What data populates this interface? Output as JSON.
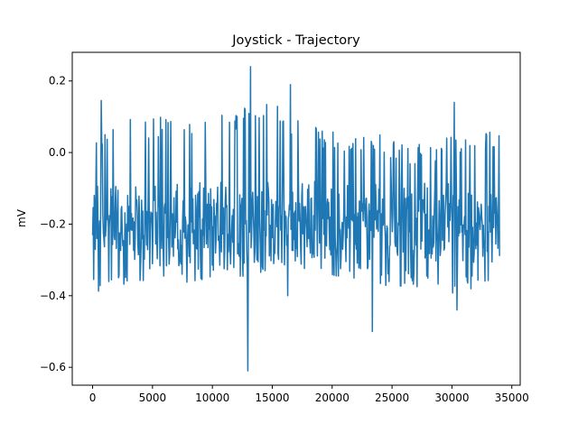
{
  "chart_data": {
    "type": "line",
    "title": "Joystick - Trajectory",
    "xlabel": "",
    "ylabel": "mV",
    "xlim": [
      -1700,
      35700
    ],
    "ylim": [
      -0.65,
      0.28
    ],
    "x_ticks": [
      0,
      5000,
      10000,
      15000,
      20000,
      25000,
      30000,
      35000
    ],
    "x_tick_labels": [
      "0",
      "5000",
      "10000",
      "15000",
      "20000",
      "25000",
      "30000",
      "35000"
    ],
    "y_ticks": [
      -0.6,
      -0.4,
      -0.2,
      0.0,
      0.2
    ],
    "y_tick_labels": [
      "−0.6",
      "−0.4",
      "−0.2",
      "0.0",
      "0.2"
    ],
    "grid": false,
    "legend": "none",
    "series_color": "#1f77b4",
    "x_start": 0,
    "x_end": 34000,
    "baseline": -0.2,
    "noise_band": [
      -0.3,
      -0.1
    ],
    "spikes": [
      {
        "x": 12950,
        "y": -0.61
      },
      {
        "x": 13200,
        "y": 0.24
      },
      {
        "x": 16500,
        "y": 0.19
      },
      {
        "x": 23350,
        "y": -0.5
      },
      {
        "x": 30200,
        "y": 0.14
      },
      {
        "x": 30400,
        "y": -0.44
      },
      {
        "x": 700,
        "y": 0.145
      },
      {
        "x": 16300,
        "y": -0.4
      }
    ],
    "envelope": {
      "upper": [
        {
          "x": 0,
          "y": 0.05
        },
        {
          "x": 3000,
          "y": 0.1
        },
        {
          "x": 6000,
          "y": 0.1
        },
        {
          "x": 9000,
          "y": 0.1
        },
        {
          "x": 12000,
          "y": 0.12
        },
        {
          "x": 15000,
          "y": 0.14
        },
        {
          "x": 18000,
          "y": 0.08
        },
        {
          "x": 21000,
          "y": 0.05
        },
        {
          "x": 24000,
          "y": 0.05
        },
        {
          "x": 27000,
          "y": 0.02
        },
        {
          "x": 30000,
          "y": 0.05
        },
        {
          "x": 34000,
          "y": 0.07
        }
      ],
      "lower": [
        {
          "x": 0,
          "y": -0.4
        },
        {
          "x": 3000,
          "y": -0.37
        },
        {
          "x": 6000,
          "y": -0.35
        },
        {
          "x": 9000,
          "y": -0.37
        },
        {
          "x": 12000,
          "y": -0.35
        },
        {
          "x": 15000,
          "y": -0.33
        },
        {
          "x": 18000,
          "y": -0.33
        },
        {
          "x": 21000,
          "y": -0.35
        },
        {
          "x": 24000,
          "y": -0.38
        },
        {
          "x": 27000,
          "y": -0.38
        },
        {
          "x": 30000,
          "y": -0.4
        },
        {
          "x": 34000,
          "y": -0.36
        }
      ]
    }
  }
}
